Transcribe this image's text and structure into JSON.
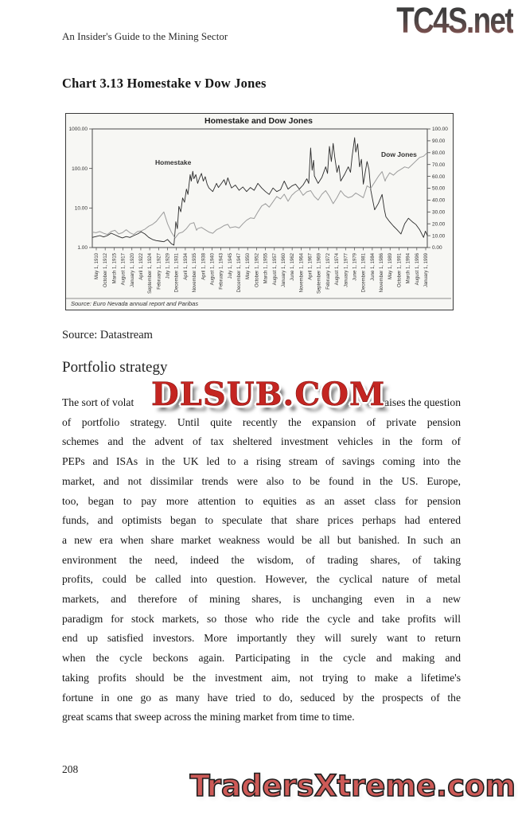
{
  "watermarks": {
    "top_logo": "TC4S.net",
    "middle": "DLSUB.COM",
    "bottom": "TradersXtreme.com"
  },
  "page": {
    "running_head": "An Insider's Guide to the Mining Sector",
    "page_number": "208"
  },
  "content": {
    "chart_heading": "Chart 3.13 Homestake v Dow Jones",
    "source_line": "Source: Datastream",
    "section_heading": "Portfolio strategy",
    "paragraph": {
      "line1_left": "The sort of volat",
      "line1_right": "raises the question",
      "lines": [
        "of portfolio strategy. Until quite recently the expansion of private pension",
        "schemes and the advent of tax sheltered investment vehicles in the form of",
        "PEPs and ISAs in the UK led to a rising stream of savings coming into the",
        "market, and not dissimilar trends were also to be found in the US. Europe,",
        "too, began to pay more attention to equities as an asset class for pension",
        "funds, and optimists began to speculate that share prices perhaps had entered",
        "a new era when share market weakness would be all but banished. In such an",
        "environment the need, indeed the wisdom, of trading shares, of taking",
        "profits, could be called into question. However, the cyclical nature of metal",
        "markets, and therefore of mining shares, is unchanging even in a new",
        "paradigm for stock markets, so those who ride the cycle and take profits will",
        "end up satisfied investors. More importantly they will surely want to return",
        "when the cycle beckons again. Participating in the cycle and making and",
        "taking profits should be the investment aim, not trying to make a lifetime's",
        "fortune in one go as many have tried to do, seduced by the prospects of the",
        "great scams that sweep across the mining market from time to time."
      ]
    }
  },
  "chart": {
    "title": "Homestake and Dow Jones",
    "source": "Source: Euro Nevada annual report and Paribas",
    "left_axis_labels": [
      "1000.00",
      "100.00",
      "10.00",
      "1.00"
    ],
    "right_axis_labels": [
      "100.00",
      "90.00",
      "80.00",
      "70.00",
      "60.00",
      "50.00",
      "40.00",
      "30.00",
      "20.00",
      "10.00",
      "0.00"
    ],
    "series_labels": {
      "homestake": "Homestake",
      "dow": "Dow Jones"
    },
    "x_labels": [
      "May 1, 1910",
      "October 1, 1912",
      "March 1, 1915",
      "August 1, 1917",
      "January 1, 1920",
      "April 1, 1922",
      "September 1, 1924",
      "February 1, 1927",
      "July 1, 1929",
      "December 1, 1931",
      "April 1, 1934",
      "November 1, 1935",
      "April 1, 1938",
      "August 1, 1940",
      "February 1, 1943",
      "July 1, 1945",
      "December 1, 1947",
      "May 1, 1950",
      "October 1, 1952",
      "March 1, 1955",
      "August 1, 1957",
      "January 1, 1960",
      "June 1, 1962",
      "November 1, 1964",
      "April 1, 1967",
      "September 1, 1969",
      "February 1, 1972",
      "August 1, 1974",
      "January 1, 1977",
      "June 1, 1979",
      "December 1, 1981",
      "June 1, 1984",
      "November 1, 1986",
      "May 1, 1989",
      "October 1, 1991",
      "March 1, 1994",
      "August 1, 1996",
      "January 1, 1999"
    ]
  },
  "chart_data": {
    "type": "line",
    "title": "Homestake and Dow Jones",
    "x_range": [
      1910,
      1999
    ],
    "left_axis": {
      "scale": "log",
      "range": [
        1,
        1000
      ]
    },
    "right_axis": {
      "scale": "linear",
      "range": [
        0,
        100
      ]
    },
    "legend_position": "inline-labels",
    "grid": false,
    "series": [
      {
        "name": "Homestake",
        "axis": "left",
        "color": "#2b2b2b",
        "points": [
          [
            1910,
            1.8
          ],
          [
            1911,
            1.9
          ],
          [
            1912,
            2.0
          ],
          [
            1913,
            1.85
          ],
          [
            1914,
            2.0
          ],
          [
            1915,
            2.3
          ],
          [
            1916,
            2.1
          ],
          [
            1917,
            1.9
          ],
          [
            1918,
            1.75
          ],
          [
            1919,
            1.9
          ],
          [
            1920,
            1.8
          ],
          [
            1921,
            2.0
          ],
          [
            1922,
            2.2
          ],
          [
            1923,
            2.5
          ],
          [
            1924,
            2.2
          ],
          [
            1925,
            1.8
          ],
          [
            1926,
            1.6
          ],
          [
            1927,
            1.5
          ],
          [
            1928,
            1.45
          ],
          [
            1929,
            1.4
          ],
          [
            1930,
            1.6
          ],
          [
            1931,
            1.25
          ],
          [
            1931.7,
            1.15
          ],
          [
            1932.2,
            4.5
          ],
          [
            1932.6,
            3.0
          ],
          [
            1933,
            11
          ],
          [
            1933.5,
            8
          ],
          [
            1934,
            18
          ],
          [
            1934.5,
            14
          ],
          [
            1935,
            30
          ],
          [
            1935.4,
            22
          ],
          [
            1936,
            70
          ],
          [
            1936.3,
            48
          ],
          [
            1936.7,
            85
          ],
          [
            1937,
            55
          ],
          [
            1937.5,
            70
          ],
          [
            1938,
            42
          ],
          [
            1938.5,
            58
          ],
          [
            1939,
            75
          ],
          [
            1939.5,
            48
          ],
          [
            1940,
            62
          ],
          [
            1940.5,
            40
          ],
          [
            1941,
            32
          ],
          [
            1942,
            26
          ],
          [
            1943,
            42
          ],
          [
            1943.5,
            33
          ],
          [
            1944,
            38
          ],
          [
            1945,
            52
          ],
          [
            1945.5,
            38
          ],
          [
            1946,
            58
          ],
          [
            1946.5,
            42
          ],
          [
            1947,
            32
          ],
          [
            1948,
            38
          ],
          [
            1949,
            28
          ],
          [
            1950,
            34
          ],
          [
            1951,
            26
          ],
          [
            1952,
            33
          ],
          [
            1953,
            28
          ],
          [
            1954,
            42
          ],
          [
            1955,
            32
          ],
          [
            1956,
            26
          ],
          [
            1957,
            22
          ],
          [
            1958,
            32
          ],
          [
            1959,
            26
          ],
          [
            1960,
            29
          ],
          [
            1961,
            48
          ],
          [
            1961.5,
            38
          ],
          [
            1962,
            30
          ],
          [
            1963,
            36
          ],
          [
            1964,
            40
          ],
          [
            1965,
            30
          ],
          [
            1966,
            38
          ],
          [
            1967,
            55
          ],
          [
            1967.5,
            42
          ],
          [
            1968,
            330
          ],
          [
            1968.4,
            90
          ],
          [
            1968.8,
            160
          ],
          [
            1969,
            65
          ],
          [
            1970,
            42
          ],
          [
            1971,
            60
          ],
          [
            1972,
            110
          ],
          [
            1972.5,
            75
          ],
          [
            1973,
            360
          ],
          [
            1973.5,
            150
          ],
          [
            1974,
            430
          ],
          [
            1974.4,
            200
          ],
          [
            1975,
            80
          ],
          [
            1975.5,
            120
          ],
          [
            1976,
            48
          ],
          [
            1977,
            70
          ],
          [
            1978,
            110
          ],
          [
            1978.6,
            80
          ],
          [
            1979,
            190
          ],
          [
            1979.7,
            600
          ],
          [
            1980,
            260
          ],
          [
            1980.5,
            420
          ],
          [
            1981,
            110
          ],
          [
            1981.5,
            170
          ],
          [
            1982,
            40
          ],
          [
            1982.6,
            90
          ],
          [
            1983,
            150
          ],
          [
            1983.5,
            95
          ],
          [
            1984,
            28
          ],
          [
            1985,
            9
          ],
          [
            1986,
            13
          ],
          [
            1987,
            22
          ],
          [
            1987.6,
            9
          ],
          [
            1988,
            6
          ],
          [
            1989,
            4.5
          ],
          [
            1990,
            3.5
          ],
          [
            1991,
            2.8
          ],
          [
            1992,
            2.2
          ],
          [
            1993,
            4.0
          ],
          [
            1994,
            5.5
          ],
          [
            1995,
            4.5
          ],
          [
            1996,
            3.8
          ],
          [
            1997,
            2.8
          ],
          [
            1998,
            1.8
          ],
          [
            1998.5,
            2.6
          ],
          [
            1999,
            2.0
          ]
        ]
      },
      {
        "name": "Dow Jones",
        "axis": "right",
        "color": "#9b9b9b",
        "points": [
          [
            1910,
            13
          ],
          [
            1911,
            12.5
          ],
          [
            1912,
            13.5
          ],
          [
            1913,
            12
          ],
          [
            1914,
            11
          ],
          [
            1915,
            13.5
          ],
          [
            1916,
            14.5
          ],
          [
            1917,
            11.5
          ],
          [
            1918,
            12.5
          ],
          [
            1919,
            15
          ],
          [
            1920,
            12.5
          ],
          [
            1921,
            11
          ],
          [
            1922,
            13.5
          ],
          [
            1923,
            14
          ],
          [
            1924,
            15.5
          ],
          [
            1925,
            18
          ],
          [
            1926,
            19.5
          ],
          [
            1927,
            22
          ],
          [
            1928,
            26
          ],
          [
            1929,
            30
          ],
          [
            1929.6,
            24
          ],
          [
            1930,
            20
          ],
          [
            1931,
            13
          ],
          [
            1932,
            8
          ],
          [
            1933,
            12
          ],
          [
            1934,
            13
          ],
          [
            1935,
            16
          ],
          [
            1936,
            20
          ],
          [
            1937,
            21
          ],
          [
            1937.7,
            14.5
          ],
          [
            1938,
            16
          ],
          [
            1939,
            17
          ],
          [
            1940,
            15
          ],
          [
            1941,
            13
          ],
          [
            1942,
            12
          ],
          [
            1943,
            15
          ],
          [
            1944,
            16.5
          ],
          [
            1945,
            18.5
          ],
          [
            1946,
            19.5
          ],
          [
            1946.6,
            16.5
          ],
          [
            1947,
            17
          ],
          [
            1948,
            17.5
          ],
          [
            1949,
            16.5
          ],
          [
            1950,
            20
          ],
          [
            1951,
            23
          ],
          [
            1952,
            25
          ],
          [
            1953,
            24.5
          ],
          [
            1954,
            30
          ],
          [
            1955,
            35
          ],
          [
            1956,
            37
          ],
          [
            1957,
            34
          ],
          [
            1958,
            38.5
          ],
          [
            1959,
            43
          ],
          [
            1960,
            41
          ],
          [
            1961,
            45
          ],
          [
            1962,
            39
          ],
          [
            1963,
            44
          ],
          [
            1964,
            47
          ],
          [
            1965,
            49
          ],
          [
            1966,
            44
          ],
          [
            1967,
            47
          ],
          [
            1968,
            48
          ],
          [
            1969,
            43
          ],
          [
            1970,
            40
          ],
          [
            1971,
            45
          ],
          [
            1972,
            48
          ],
          [
            1973,
            43
          ],
          [
            1974,
            37
          ],
          [
            1975,
            42
          ],
          [
            1976,
            48
          ],
          [
            1977,
            44
          ],
          [
            1978,
            42
          ],
          [
            1979,
            43
          ],
          [
            1980,
            46
          ],
          [
            1981,
            44
          ],
          [
            1982,
            42
          ],
          [
            1983,
            52
          ],
          [
            1984,
            50
          ],
          [
            1985,
            55
          ],
          [
            1986,
            60
          ],
          [
            1987,
            64
          ],
          [
            1987.8,
            56
          ],
          [
            1988,
            58
          ],
          [
            1989,
            63
          ],
          [
            1990,
            61
          ],
          [
            1991,
            64
          ],
          [
            1992,
            66
          ],
          [
            1993,
            68
          ],
          [
            1994,
            67
          ],
          [
            1995,
            70
          ],
          [
            1996,
            73
          ],
          [
            1997,
            76
          ],
          [
            1998,
            77
          ],
          [
            1999,
            80
          ]
        ]
      }
    ]
  }
}
